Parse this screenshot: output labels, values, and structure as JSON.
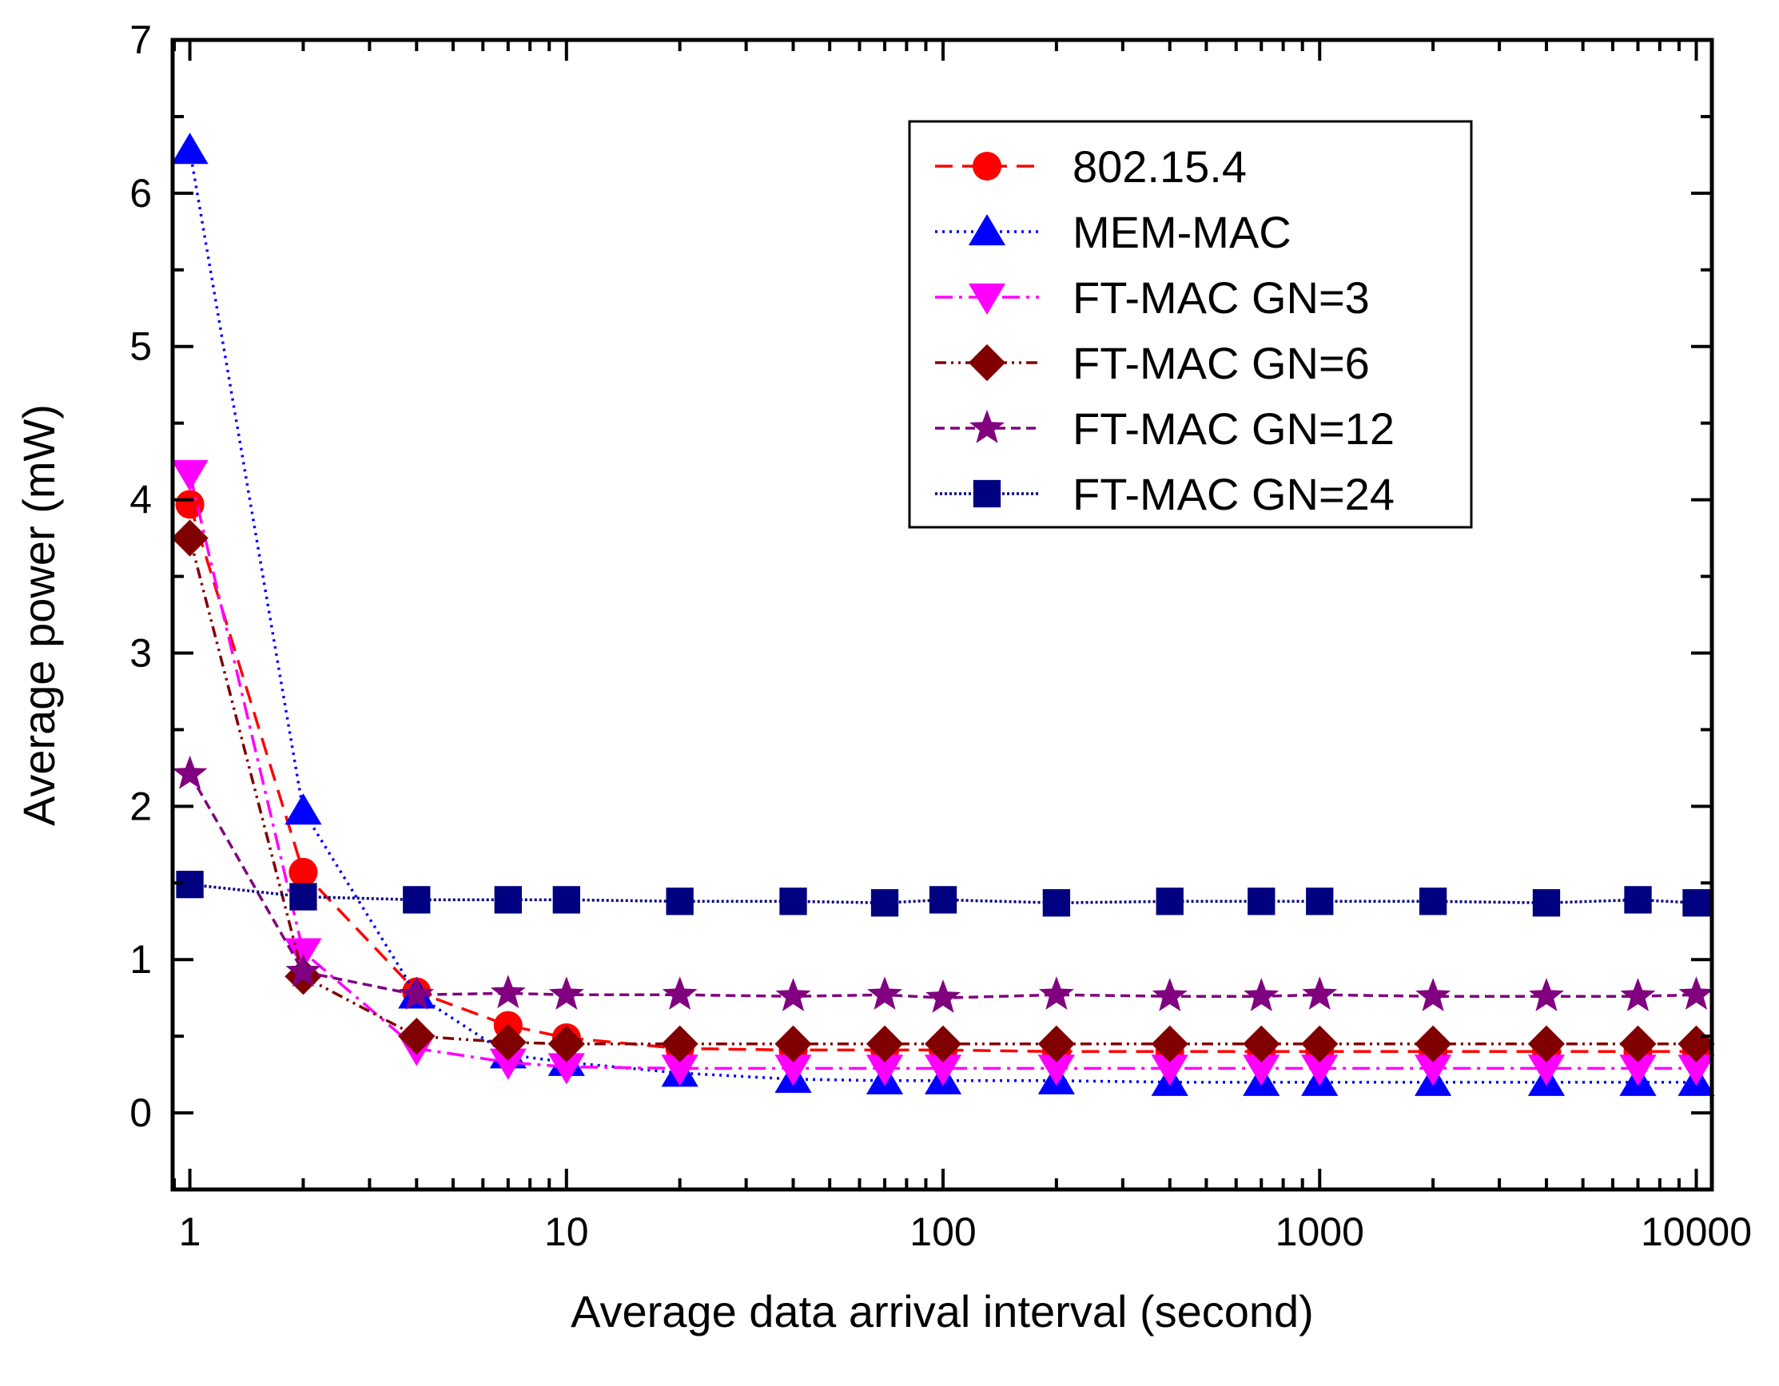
{
  "chart_data": {
    "type": "line",
    "title": "",
    "xlabel": "Average data arrival interval (second)",
    "ylabel": "Average power (mW)",
    "xscale": "log",
    "xlim": [
      0.9,
      11000
    ],
    "ylim": [
      -0.5,
      7
    ],
    "x_ticks": [
      1,
      10,
      100,
      1000,
      10000
    ],
    "x_tick_labels": [
      "1",
      "10",
      "100",
      "1000",
      "10000"
    ],
    "y_ticks": [
      0,
      1,
      2,
      3,
      4,
      5,
      6,
      7
    ],
    "y_tick_labels": [
      "0",
      "1",
      "2",
      "3",
      "4",
      "5",
      "6",
      "7"
    ],
    "legend_position": "top-right",
    "grid": false,
    "x": [
      1,
      2,
      4,
      7,
      10,
      20,
      40,
      70,
      100,
      200,
      400,
      700,
      1000,
      2000,
      4000,
      7000,
      10000
    ],
    "series": [
      {
        "name": "802.15.4",
        "color": "#ff0000",
        "dash": "22,12",
        "marker": "circle",
        "values": [
          3.97,
          1.57,
          0.79,
          0.57,
          0.49,
          0.42,
          0.41,
          0.41,
          0.41,
          0.4,
          0.4,
          0.4,
          0.4,
          0.4,
          0.4,
          0.4,
          0.4
        ]
      },
      {
        "name": "MEM-MAC",
        "color": "#0000ff",
        "dash": "3,6",
        "marker": "triangle-up",
        "values": [
          6.28,
          1.97,
          0.77,
          0.38,
          0.33,
          0.26,
          0.22,
          0.21,
          0.21,
          0.21,
          0.2,
          0.2,
          0.2,
          0.2,
          0.2,
          0.2,
          0.2
        ]
      },
      {
        "name": "FT-MAC GN=3",
        "color": "#ff00ff",
        "dash": "22,8,4,8",
        "marker": "triangle-down",
        "values": [
          4.17,
          1.05,
          0.42,
          0.33,
          0.3,
          0.29,
          0.29,
          0.29,
          0.29,
          0.29,
          0.29,
          0.29,
          0.29,
          0.29,
          0.29,
          0.29,
          0.29
        ]
      },
      {
        "name": "FT-MAC GN=6",
        "color": "#800000",
        "dash": "14,6,3,6,3,6",
        "marker": "diamond",
        "values": [
          3.75,
          0.89,
          0.5,
          0.46,
          0.45,
          0.45,
          0.45,
          0.45,
          0.45,
          0.45,
          0.45,
          0.45,
          0.45,
          0.45,
          0.45,
          0.45,
          0.45
        ]
      },
      {
        "name": "FT-MAC GN=12",
        "color": "#800080",
        "dash": "12,7",
        "marker": "star",
        "values": [
          2.21,
          0.92,
          0.77,
          0.78,
          0.77,
          0.77,
          0.76,
          0.77,
          0.75,
          0.77,
          0.76,
          0.76,
          0.77,
          0.76,
          0.76,
          0.76,
          0.77
        ]
      },
      {
        "name": "FT-MAC GN=24",
        "color": "#000080",
        "dash": "3,3",
        "marker": "square",
        "values": [
          1.49,
          1.41,
          1.39,
          1.39,
          1.39,
          1.38,
          1.38,
          1.37,
          1.39,
          1.37,
          1.38,
          1.38,
          1.38,
          1.38,
          1.37,
          1.39,
          1.37
        ]
      }
    ]
  }
}
